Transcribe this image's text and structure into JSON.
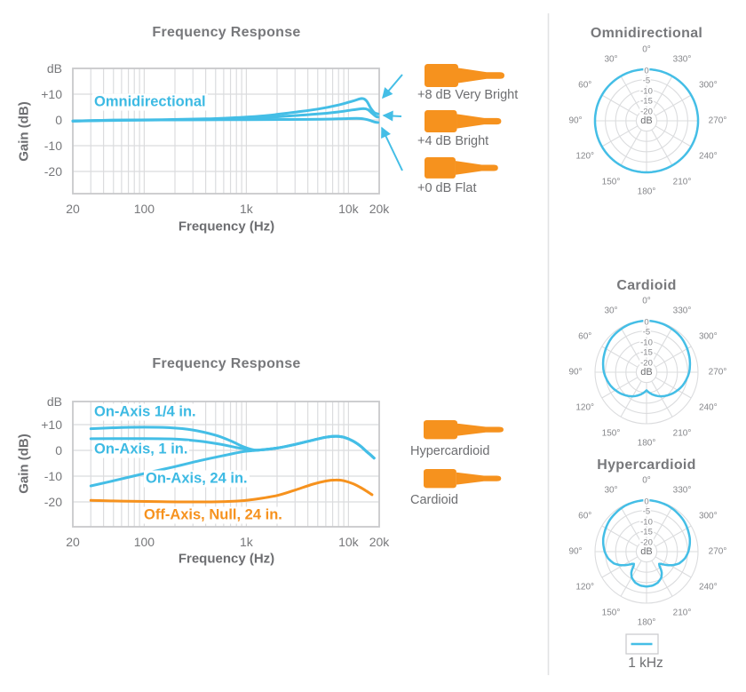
{
  "colors": {
    "blue": "#44BEE6",
    "orange": "#F6921E",
    "title_gray": "#77787B",
    "dark_gray": "#6D6E71",
    "polar_label_gray": "#85868A",
    "grid": "#DBDCDE",
    "axis_border": "#C8C9CB",
    "divider": "#E2E3E4"
  },
  "chart_data": [
    {
      "id": "fr_top",
      "type": "line",
      "title": "Frequency Response",
      "annotation": "Omnidirectional",
      "xlabel": "Frequency (Hz)",
      "ylabel": "Gain (dB)",
      "y_unit": "dB",
      "x_scale": "log",
      "xlim": [
        20,
        20000
      ],
      "ylim": [
        -29,
        19
      ],
      "grid": true,
      "xtick_values": [
        20,
        100,
        1000,
        10000,
        20000
      ],
      "xtick_labels": [
        "20",
        "100",
        "1k",
        "10k",
        "20k"
      ],
      "ytick_values": [
        10,
        0,
        -10,
        -20
      ],
      "ytick_labels": [
        "+10",
        "0",
        "-10",
        "-20"
      ],
      "series": [
        {
          "name": "+8 dB Very Bright",
          "color": "#44BEE6",
          "points": [
            [
              20,
              -0.4
            ],
            [
              50,
              -0.1
            ],
            [
              150,
              0.1
            ],
            [
              400,
              0.4
            ],
            [
              800,
              0.9
            ],
            [
              1500,
              1.6
            ],
            [
              3000,
              3.0
            ],
            [
              5000,
              4.2
            ],
            [
              8000,
              5.8
            ],
            [
              11000,
              7.3
            ],
            [
              13500,
              8.3
            ],
            [
              15000,
              7.4
            ],
            [
              16500,
              4.6
            ],
            [
              18000,
              2.8
            ],
            [
              19500,
              2.3
            ]
          ]
        },
        {
          "name": "+4 dB Bright",
          "color": "#44BEE6",
          "points": [
            [
              20,
              -0.4
            ],
            [
              50,
              -0.1
            ],
            [
              150,
              0
            ],
            [
              400,
              0.2
            ],
            [
              800,
              0.5
            ],
            [
              1500,
              0.9
            ],
            [
              3000,
              1.7
            ],
            [
              5000,
              2.3
            ],
            [
              8000,
              3.1
            ],
            [
              11000,
              3.9
            ],
            [
              14000,
              4.4
            ],
            [
              15500,
              4.0
            ],
            [
              17000,
              2.6
            ],
            [
              18500,
              1.4
            ],
            [
              19500,
              1.1
            ]
          ]
        },
        {
          "name": "+0 dB Flat",
          "color": "#44BEE6",
          "points": [
            [
              20,
              -0.5
            ],
            [
              50,
              -0.2
            ],
            [
              150,
              0
            ],
            [
              1000,
              0.1
            ],
            [
              4000,
              0.2
            ],
            [
              8000,
              0.4
            ],
            [
              12000,
              0.6
            ],
            [
              14000,
              0.4
            ],
            [
              16000,
              -0.1
            ],
            [
              18000,
              -0.8
            ],
            [
              19500,
              -1.0
            ]
          ]
        }
      ]
    },
    {
      "id": "fr_bottom",
      "type": "line",
      "title": "Frequency Response",
      "annotations": [
        "On-Axis 1/4 in.",
        "On-Axis, 1 in.",
        "On-Axis, 24 in.",
        "Off-Axis, Null, 24 in."
      ],
      "xlabel": "Frequency (Hz)",
      "ylabel": "Gain (dB)",
      "y_unit": "dB",
      "x_scale": "log",
      "xlim": [
        20,
        20000
      ],
      "ylim": [
        -29,
        19
      ],
      "grid": true,
      "xtick_values": [
        20,
        100,
        1000,
        10000,
        20000
      ],
      "xtick_labels": [
        "20",
        "100",
        "1k",
        "10k",
        "20k"
      ],
      "ytick_values": [
        10,
        0,
        -10,
        -20
      ],
      "ytick_labels": [
        "+10",
        "0",
        "-10",
        "-20"
      ],
      "series": [
        {
          "name": "On-Axis 1/4 in.",
          "color": "#44BEE6",
          "points": [
            [
              30,
              8.4
            ],
            [
              60,
              8.9
            ],
            [
              100,
              9.0
            ],
            [
              180,
              8.8
            ],
            [
              300,
              7.9
            ],
            [
              500,
              5.9
            ],
            [
              700,
              3.7
            ],
            [
              900,
              1.7
            ],
            [
              1100,
              0.5
            ],
            [
              1300,
              0.1
            ],
            [
              2000,
              0.9
            ],
            [
              3000,
              2.3
            ],
            [
              4500,
              4.0
            ],
            [
              6000,
              5.1
            ],
            [
              7500,
              5.5
            ],
            [
              9000,
              5.1
            ],
            [
              11000,
              3.7
            ],
            [
              13000,
              1.8
            ],
            [
              15000,
              -0.4
            ],
            [
              16500,
              -1.8
            ],
            [
              17800,
              -3.0
            ]
          ]
        },
        {
          "name": "On-Axis, 1 in.",
          "color": "#44BEE6",
          "points": [
            [
              30,
              4.5
            ],
            [
              100,
              4.6
            ],
            [
              200,
              4.4
            ],
            [
              350,
              3.6
            ],
            [
              550,
              2.4
            ],
            [
              800,
              1.1
            ],
            [
              1050,
              0.3
            ],
            [
              1300,
              0.1
            ],
            [
              2000,
              0.9
            ],
            [
              3000,
              2.3
            ],
            [
              4500,
              4.0
            ],
            [
              6000,
              5.1
            ],
            [
              7500,
              5.5
            ],
            [
              9000,
              5.1
            ],
            [
              11000,
              3.7
            ],
            [
              13000,
              1.8
            ],
            [
              15000,
              -0.4
            ],
            [
              16500,
              -1.8
            ],
            [
              17800,
              -3.0
            ]
          ]
        },
        {
          "name": "On-Axis, 24 in.",
          "color": "#44BEE6",
          "points": [
            [
              30,
              -13.8
            ],
            [
              50,
              -11.8
            ],
            [
              100,
              -9.0
            ],
            [
              200,
              -6.3
            ],
            [
              350,
              -4.0
            ],
            [
              600,
              -2.0
            ],
            [
              900,
              -0.6
            ],
            [
              1150,
              -0.1
            ],
            [
              1300,
              0.1
            ],
            [
              2000,
              0.9
            ],
            [
              3000,
              2.3
            ],
            [
              4500,
              4.0
            ],
            [
              6000,
              5.1
            ],
            [
              7500,
              5.5
            ],
            [
              9000,
              5.1
            ],
            [
              11000,
              3.7
            ],
            [
              13000,
              1.8
            ],
            [
              15000,
              -0.4
            ],
            [
              16500,
              -1.8
            ],
            [
              17800,
              -3.0
            ]
          ]
        },
        {
          "name": "Off-Axis, Null, 24 in.",
          "color": "#F6921E",
          "points": [
            [
              30,
              -19.4
            ],
            [
              60,
              -19.7
            ],
            [
              150,
              -19.9
            ],
            [
              400,
              -20.0
            ],
            [
              800,
              -19.7
            ],
            [
              1200,
              -19.0
            ],
            [
              2000,
              -17.5
            ],
            [
              3000,
              -15.4
            ],
            [
              4500,
              -13.1
            ],
            [
              6000,
              -11.9
            ],
            [
              7500,
              -11.5
            ],
            [
              9000,
              -11.8
            ],
            [
              11000,
              -12.9
            ],
            [
              13000,
              -14.3
            ],
            [
              15000,
              -15.8
            ],
            [
              17000,
              -17.2
            ]
          ]
        }
      ]
    },
    {
      "id": "polar_omnidirectional",
      "type": "polar",
      "title": "Omnidirectional",
      "angle_labels": [
        "0°",
        "30°",
        "60°",
        "90°",
        "120°",
        "150°",
        "180°",
        "210°",
        "240°",
        "270°",
        "300°",
        "330°"
      ],
      "ring_labels": [
        "0",
        "-5",
        "-10",
        "-15",
        "-20"
      ],
      "rings_db": [
        0,
        -5,
        -10,
        -15,
        -20
      ],
      "db_label": "dB",
      "series": [
        {
          "name": "1 kHz",
          "color": "#44BEE6",
          "points_deg_db": [
            [
              0,
              0
            ],
            [
              180,
              0
            ]
          ]
        }
      ]
    },
    {
      "id": "polar_cardioid",
      "type": "polar",
      "title": "Cardioid",
      "angle_labels": [
        "0°",
        "30°",
        "60°",
        "90°",
        "120°",
        "150°",
        "180°",
        "210°",
        "240°",
        "270°",
        "300°",
        "330°"
      ],
      "ring_labels": [
        "0",
        "-5",
        "-10",
        "-15",
        "-20"
      ],
      "rings_db": [
        0,
        -5,
        -10,
        -15,
        -20
      ],
      "db_label": "dB",
      "series": [
        {
          "name": "1 kHz",
          "color": "#44BEE6",
          "points_deg_db": [
            [
              0,
              0
            ],
            [
              20,
              -0.3
            ],
            [
              45,
              -1.2
            ],
            [
              70,
              -2.9
            ],
            [
              90,
              -4.3
            ],
            [
              110,
              -6.3
            ],
            [
              130,
              -8.8
            ],
            [
              150,
              -11.5
            ],
            [
              165,
              -13.8
            ],
            [
              175,
              -15.4
            ],
            [
              180,
              -16.2
            ]
          ]
        }
      ]
    },
    {
      "id": "polar_hypercardioid",
      "type": "polar",
      "title": "Hypercardioid",
      "angle_labels": [
        "0°",
        "30°",
        "60°",
        "90°",
        "120°",
        "150°",
        "180°",
        "210°",
        "240°",
        "270°",
        "300°",
        "330°"
      ],
      "ring_labels": [
        "0",
        "-5",
        "-10",
        "-15",
        "-20"
      ],
      "rings_db": [
        0,
        -5,
        -10,
        -15,
        -20
      ],
      "db_label": "dB",
      "series": [
        {
          "name": "1 kHz",
          "color": "#44BEE6",
          "points_deg_db": [
            [
              0,
              0
            ],
            [
              25,
              -0.4
            ],
            [
              50,
              -1.5
            ],
            [
              75,
              -3.2
            ],
            [
              90,
              -4.7
            ],
            [
              100,
              -6.1
            ],
            [
              110,
              -8.2
            ],
            [
              118,
              -11.0
            ],
            [
              125,
              -13.8
            ],
            [
              130,
              -15.8
            ],
            [
              134,
              -16.5
            ],
            [
              138,
              -15.6
            ],
            [
              143,
              -12.8
            ],
            [
              150,
              -10.6
            ],
            [
              160,
              -9.0
            ],
            [
              170,
              -8.3
            ],
            [
              180,
              -8.1
            ]
          ]
        }
      ]
    }
  ],
  "callouts": {
    "top": [
      {
        "label": "+8 dB Very Bright"
      },
      {
        "label": "+4 dB Bright"
      },
      {
        "label": "+0 dB Flat"
      }
    ],
    "bottom": [
      {
        "label": "Hypercardioid"
      },
      {
        "label": "Cardioid"
      }
    ]
  },
  "legend": {
    "label": "1 kHz"
  }
}
